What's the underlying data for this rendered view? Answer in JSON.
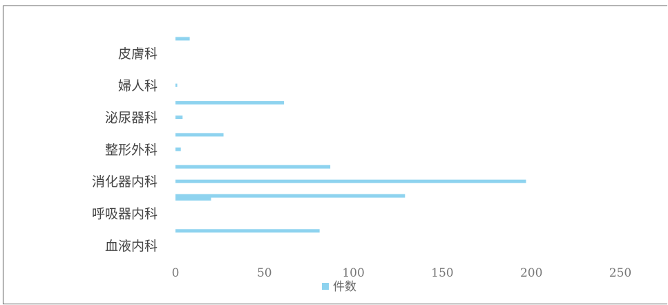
{
  "chart_data": {
    "type": "bar",
    "orientation": "horizontal",
    "categories": [
      {
        "label": "皮膚科",
        "bar_values": [
          8,
          0,
          0
        ]
      },
      {
        "label": "婦人科",
        "bar_values": [
          0,
          1,
          0
        ]
      },
      {
        "label": "泌尿器科",
        "bar_values": [
          61,
          4,
          0
        ]
      },
      {
        "label": "整形外科",
        "bar_values": [
          27,
          3,
          0
        ]
      },
      {
        "label": "消化器内科",
        "bar_values": [
          87,
          197,
          129
        ]
      },
      {
        "label": "呼吸器内科",
        "bar_values": [
          20,
          0,
          0
        ]
      },
      {
        "label": "血液内科",
        "bar_values": [
          81,
          0,
          0
        ]
      }
    ],
    "series": [
      {
        "name": "件数"
      }
    ],
    "xlim": [
      0,
      250
    ],
    "xticks": [
      "0",
      "50",
      "100",
      "150",
      "200",
      "250"
    ],
    "legend": "bottom",
    "grid": false,
    "bar_color": "#8ed3ef"
  }
}
